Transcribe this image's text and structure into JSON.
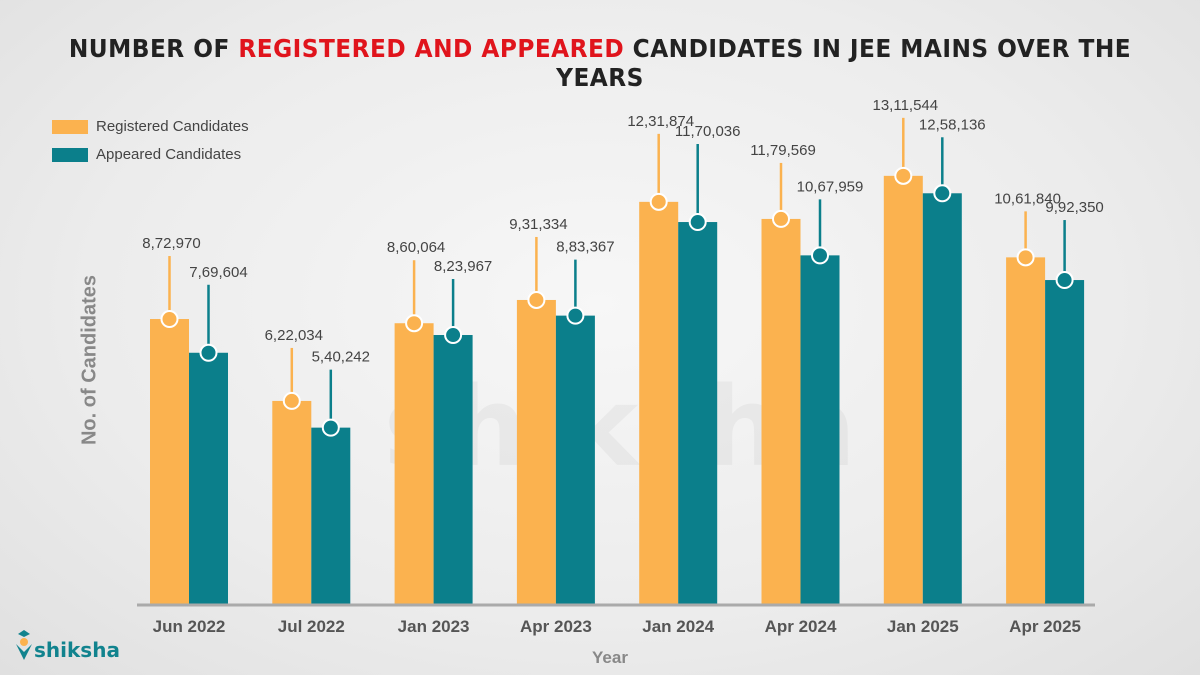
{
  "chart_data": {
    "type": "bar",
    "title_parts": [
      "NUMBER OF ",
      "REGISTERED AND APPEARED",
      " CANDIDATES IN JEE MAINS OVER THE YEARS"
    ],
    "xlabel": "Year",
    "ylabel": "No. of  Candidates",
    "categories": [
      "Jun 2022",
      "Jul 2022",
      "Jan 2023",
      "Apr 2023",
      "Jan 2024",
      "Apr 2024",
      "Jan 2025",
      "Apr 2025"
    ],
    "series": [
      {
        "name": "Registered Candidates",
        "color": "#FBB24F",
        "values": [
          872970,
          622034,
          860064,
          931334,
          1231874,
          1179569,
          1311544,
          1061840
        ],
        "labels": [
          "8,72,970",
          "6,22,034",
          "8,60,064",
          "9,31,334",
          "12,31,874",
          "11,79,569",
          "13,11,544",
          "10,61,840"
        ]
      },
      {
        "name": "Appeared Candidates",
        "color": "#0B7F8B",
        "values": [
          769604,
          540242,
          823967,
          883367,
          1170036,
          1067959,
          1258136,
          992350
        ],
        "labels": [
          "7,69,604",
          "5,40,242",
          "8,23,967",
          "8,83,367",
          "11,70,036",
          "10,67,959",
          "12,58,136",
          "9,92,350"
        ]
      }
    ],
    "ylim": [
      0,
      1550000
    ],
    "grid": false,
    "legend_position": "top-left"
  },
  "watermark": "shiksha",
  "logo_text": "shiksha"
}
